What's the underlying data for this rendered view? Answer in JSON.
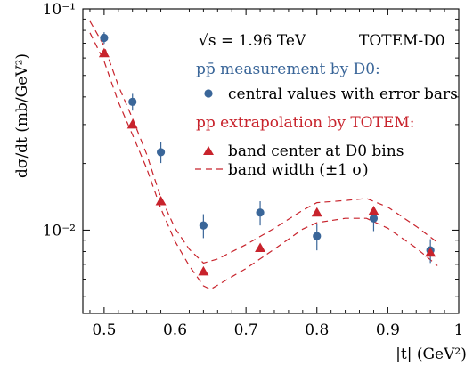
{
  "chart_data": {
    "type": "scatter",
    "annotations": {
      "energy": "√s = 1.96 TeV",
      "experiment": "TOTEM-D0",
      "d0_heading": "pp̄ measurement by D0:",
      "d0_item": "central values with error bars",
      "totem_heading": "pp extrapolation by TOTEM:",
      "totem_item_center": "band center at D0 bins",
      "totem_item_band": "band width (±1 σ)"
    },
    "xlabel": "|t|   (GeV²)",
    "ylabel": "dσ/dt   (mb/GeV²)",
    "x_ticks": [
      "0.5",
      "0.6",
      "0.7",
      "0.8",
      "0.9",
      "1"
    ],
    "y_tick_labels": [
      "10⁻¹",
      "10⁻²"
    ],
    "xlim": [
      0.47,
      1.0
    ],
    "ylim": [
      0.0042,
      0.1
    ],
    "y_scale": "log",
    "colors": {
      "d0": "#3a6699",
      "totem": "#c8232c",
      "axes": "#000000"
    },
    "series": [
      {
        "name": "central values with error bars",
        "marker": "circle",
        "x": [
          0.5,
          0.54,
          0.58,
          0.64,
          0.72,
          0.8,
          0.88,
          0.96
        ],
        "y": [
          0.074,
          0.038,
          0.0225,
          0.0105,
          0.012,
          0.0094,
          0.0113,
          0.0081
        ],
        "y_err": [
          0.0045,
          0.0033,
          0.0024,
          0.0013,
          0.0015,
          0.0013,
          0.0014,
          0.001
        ]
      },
      {
        "name": "band center at D0 bins",
        "marker": "triangle",
        "x": [
          0.5,
          0.54,
          0.58,
          0.64,
          0.72,
          0.8,
          0.88,
          0.96
        ],
        "y": [
          0.063,
          0.03,
          0.0135,
          0.0065,
          0.0083,
          0.012,
          0.0122,
          0.0079
        ]
      },
      {
        "name": "band width (±1 σ)",
        "style": "dashed",
        "upper": {
          "x": [
            0.48,
            0.5,
            0.52,
            0.54,
            0.56,
            0.58,
            0.6,
            0.62,
            0.64,
            0.66,
            0.7,
            0.74,
            0.78,
            0.8,
            0.84,
            0.87,
            0.9,
            0.94,
            0.97
          ],
          "y": [
            0.088,
            0.068,
            0.045,
            0.032,
            0.022,
            0.014,
            0.0102,
            0.0082,
            0.0071,
            0.0074,
            0.0086,
            0.0102,
            0.0123,
            0.0133,
            0.0136,
            0.0139,
            0.0127,
            0.0104,
            0.0088
          ]
        },
        "lower": {
          "x": [
            0.48,
            0.5,
            0.52,
            0.54,
            0.56,
            0.58,
            0.6,
            0.62,
            0.64,
            0.65,
            0.7,
            0.74,
            0.78,
            0.8,
            0.84,
            0.87,
            0.9,
            0.94,
            0.97
          ],
          "y": [
            0.078,
            0.058,
            0.038,
            0.027,
            0.019,
            0.0125,
            0.0089,
            0.0069,
            0.0056,
            0.0054,
            0.0067,
            0.0082,
            0.0101,
            0.0108,
            0.0113,
            0.0113,
            0.0102,
            0.0083,
            0.0069
          ]
        }
      }
    ]
  }
}
